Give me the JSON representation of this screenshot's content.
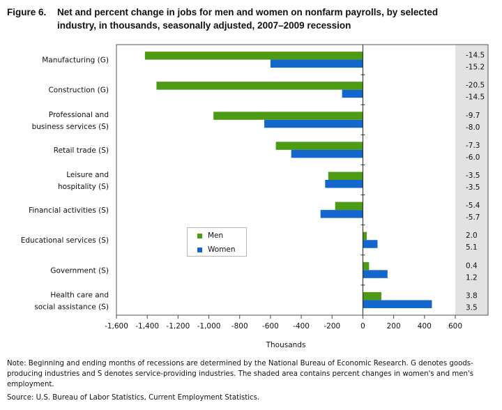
{
  "title": {
    "label": "Figure 6.",
    "line1": "Net and percent change in jobs for men and women on nonfarm payrolls, by selected",
    "line2": "industry, in thousands, seasonally  adjusted, 2007–2009 recession"
  },
  "note": "Note: Beginning and ending months of recessions are determined by the National Bureau of Economic Research. G denotes goods-producing industries and S denotes service-providing industries. The shaded area contains percent changes in women's and men's employment.",
  "source": "Source: U.S. Bureau of Labor Statistics, Current Employment Statistics.",
  "legend": {
    "men": "Men",
    "women": "Women"
  },
  "colors": {
    "men": "#4d9a14",
    "women": "#1266cc",
    "shade": "#e2e2e2"
  },
  "chart_data": {
    "type": "bar",
    "orientation": "horizontal",
    "xlabel": "Thousands",
    "xlim": [
      -1600,
      600
    ],
    "xticks": [
      "-1,600",
      "-1,400",
      "-1,200",
      "-1,000",
      "-800",
      "-600",
      "-400",
      "-200",
      "0",
      "200",
      "400",
      "600"
    ],
    "xtick_values": [
      -1600,
      -1400,
      -1200,
      -1000,
      -800,
      -600,
      -400,
      -200,
      0,
      200,
      400,
      600
    ],
    "legend_position": "lower-left",
    "categories": [
      [
        "Manufacturing (G)"
      ],
      [
        "Construction (G)"
      ],
      [
        "Professional and",
        "business services (S)"
      ],
      [
        "Retail trade (S)"
      ],
      [
        "Leisure and",
        "hospitality (S)"
      ],
      [
        "Financial activities (S)"
      ],
      [
        "Educational services (S)"
      ],
      [
        "Government (S)"
      ],
      [
        "Health care and",
        "social assistance (S)"
      ]
    ],
    "series": [
      {
        "name": "Men",
        "values": [
          -1415,
          -1340,
          -970,
          -565,
          -225,
          -180,
          25,
          40,
          120
        ]
      },
      {
        "name": "Women",
        "values": [
          -600,
          -135,
          -640,
          -465,
          -245,
          -275,
          95,
          160,
          448
        ]
      }
    ],
    "percent_change": {
      "men": [
        "-14.5",
        "-20.5",
        "-9.7",
        "-7.3",
        "-3.5",
        "-5.4",
        "2.0",
        "0.4",
        "3.8"
      ],
      "women": [
        "-15.2",
        "-14.5",
        "-8.0",
        "-6.0",
        "-3.5",
        "-5.7",
        "5.1",
        "1.2",
        "3.5"
      ]
    }
  }
}
